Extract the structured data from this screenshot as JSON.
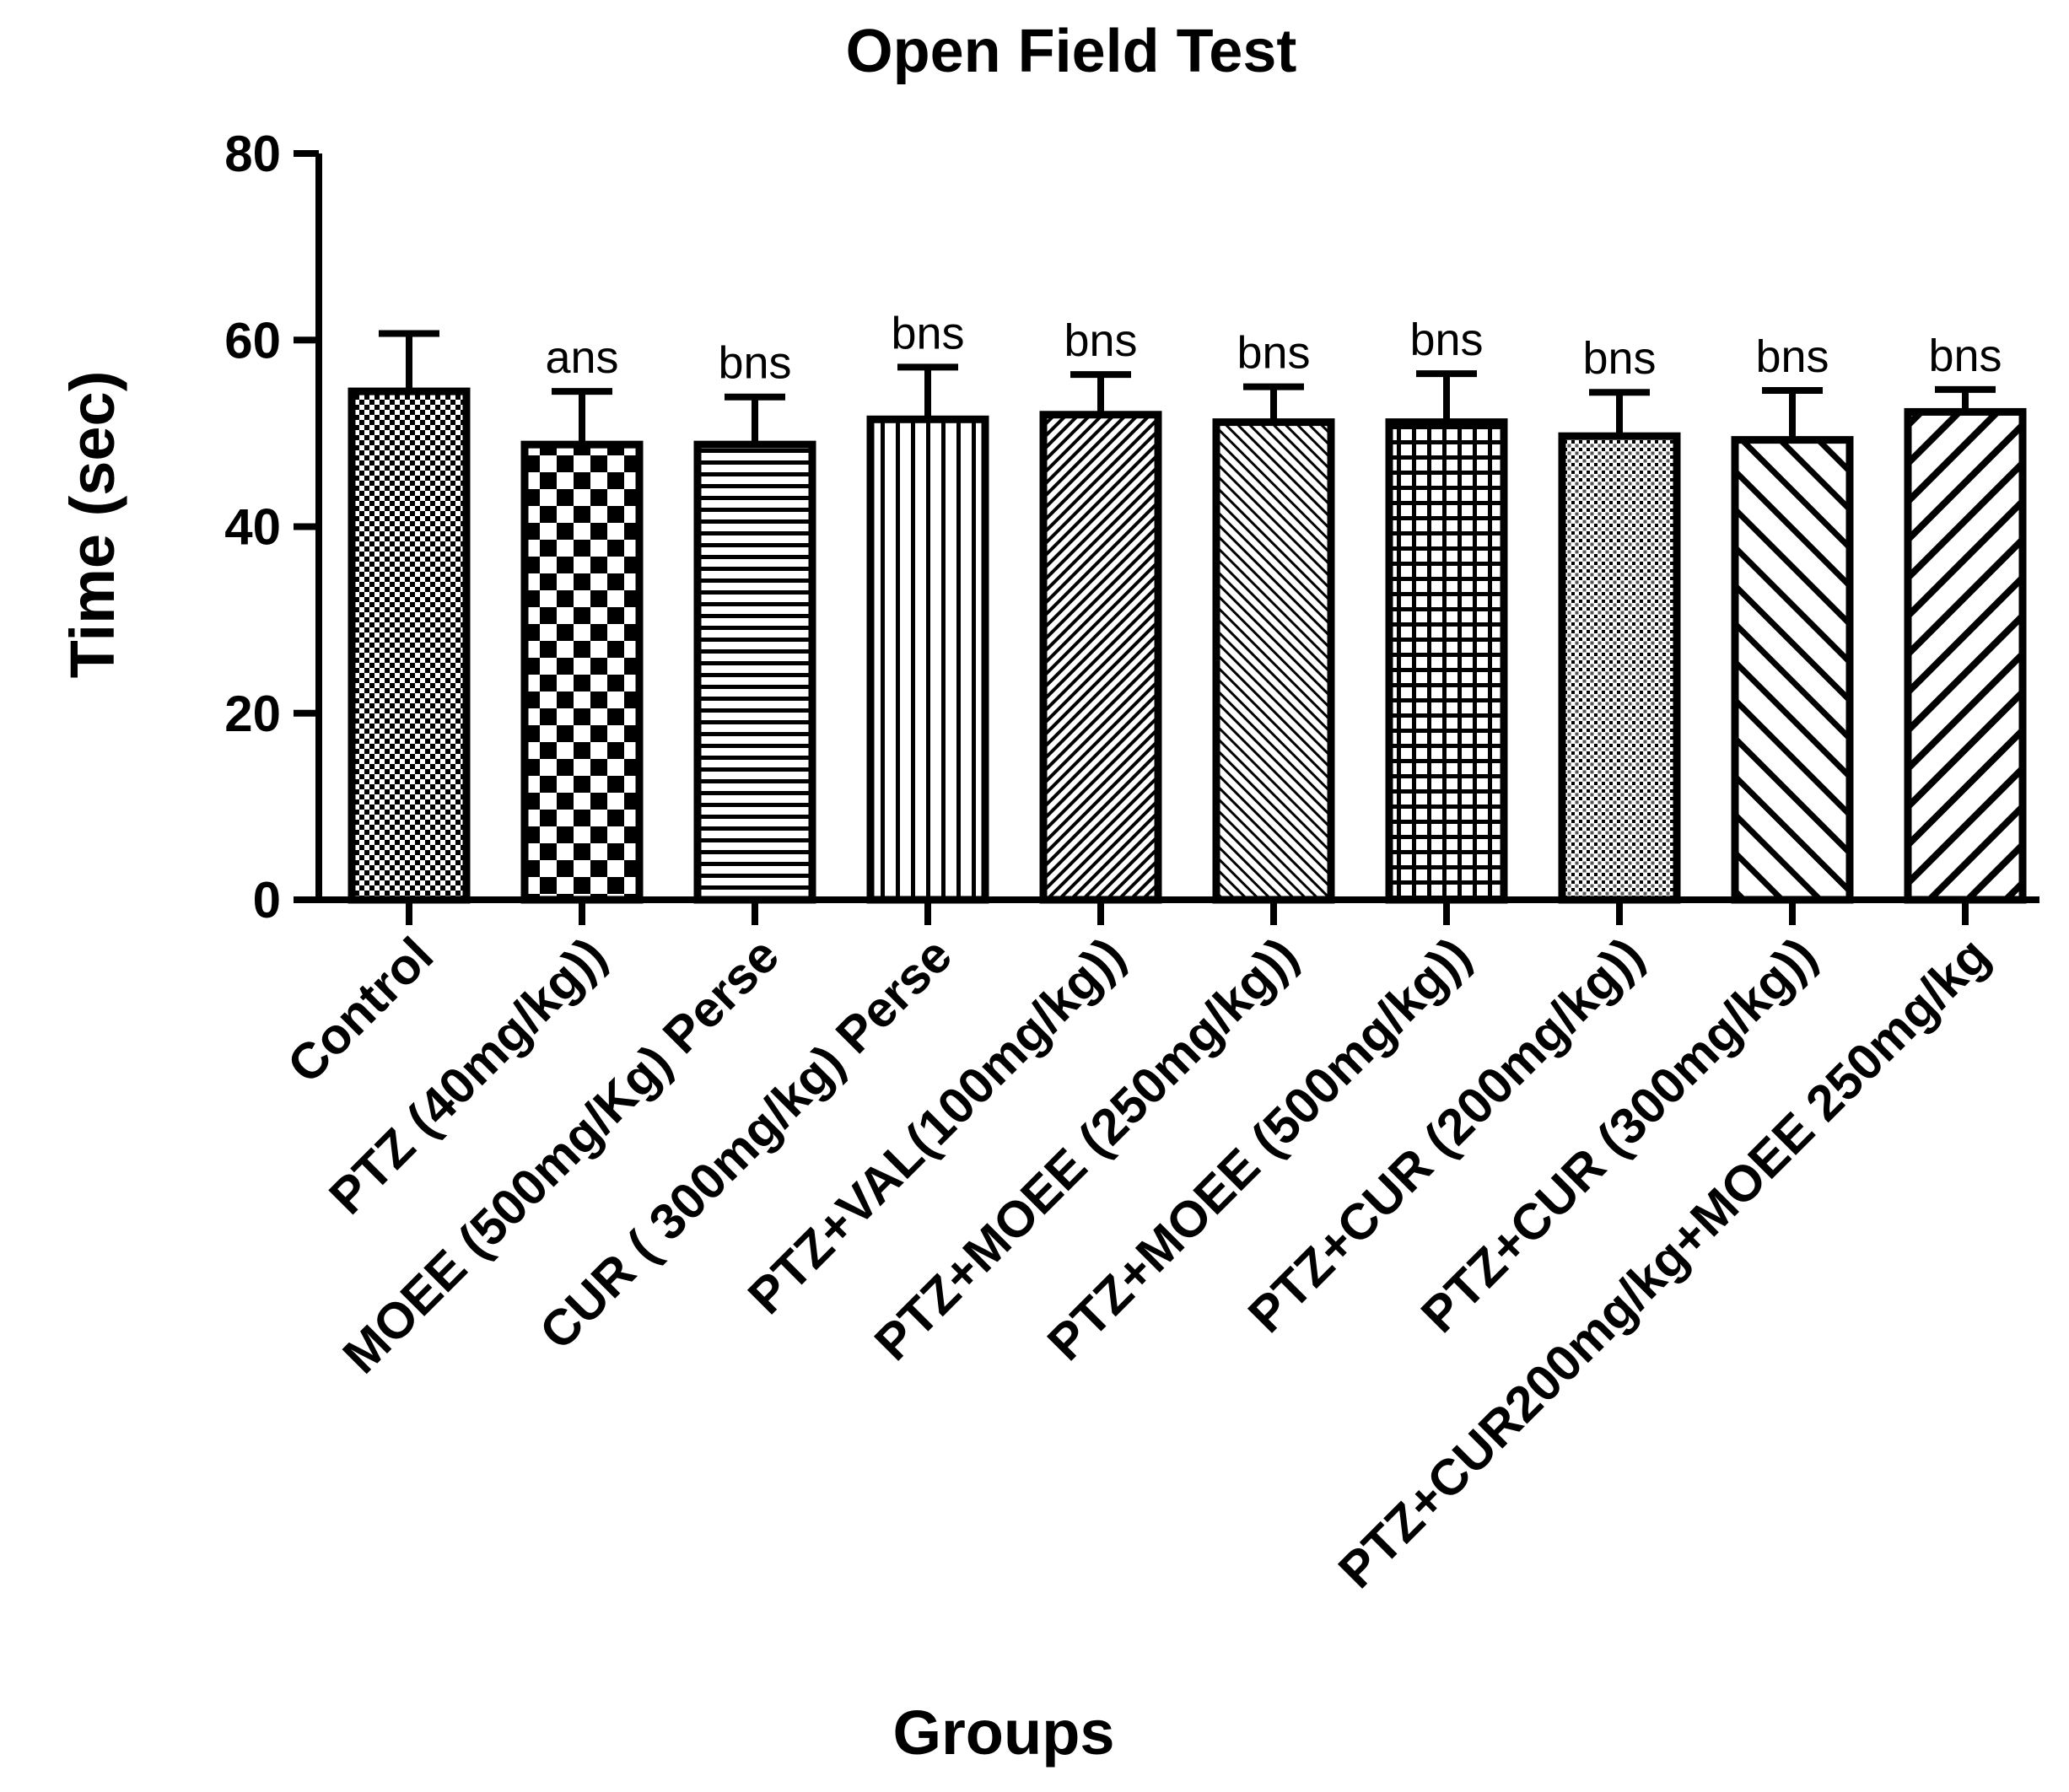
{
  "chart_data": {
    "type": "bar",
    "title": "Open Field Test",
    "xlabel": "Groups",
    "ylabel": "Time (sec)",
    "ylim": [
      0,
      80
    ],
    "yticks": [
      "0",
      "20",
      "40",
      "60",
      "80"
    ],
    "categories": [
      "Control",
      "PTZ (40mg/kg))",
      "MOEE (500mg/Kg) Perse",
      "CUR ( 300mg/kg) Perse",
      "PTZ+VAL(100mg/kg))",
      "PTZ+MOEE (250mg/kg))",
      "PTZ+MOEE (500mg/kg))",
      "PTZ+CUR (200mg/kg))",
      "PTZ+CUR (300mg/kg))",
      "PTZ+CUR200mg/kg+MOEE 250mg/kg"
    ],
    "values": [
      54.5,
      48.8,
      48.8,
      51.5,
      52.0,
      51.2,
      51.2,
      49.7,
      49.3,
      52.3
    ],
    "errors": [
      6.2,
      5.7,
      5.1,
      5.6,
      4.3,
      3.8,
      5.2,
      4.7,
      5.3,
      2.4
    ],
    "significance": [
      "",
      "ans",
      "bns",
      "bns",
      "bns",
      "bns",
      "bns",
      "bns",
      "bns",
      "bns"
    ],
    "fill_patterns": [
      "fine-check",
      "checkerboard",
      "horizontal-lines",
      "vertical-lines",
      "fine-diagonal",
      "diagonal-dense",
      "grid",
      "dots",
      "wide-diagonal",
      "wide-diagonal-bold"
    ],
    "grid": false,
    "legend": "none"
  }
}
